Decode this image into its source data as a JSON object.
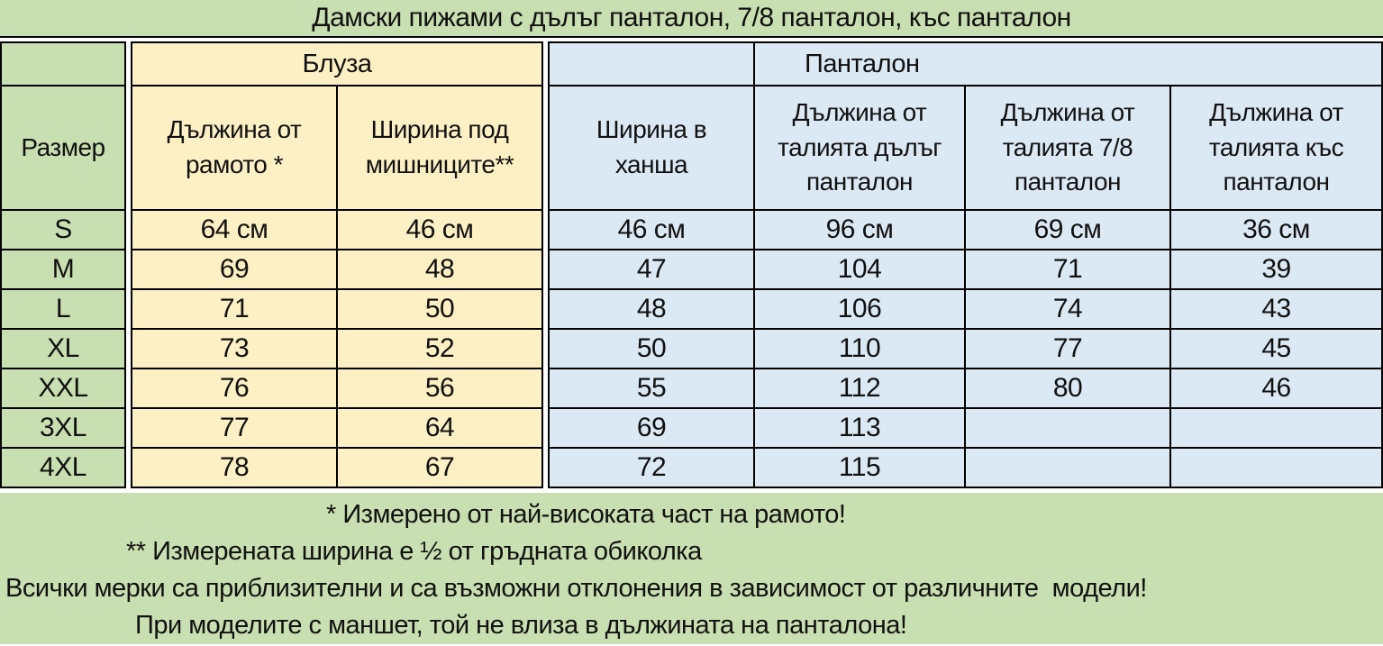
{
  "colors": {
    "section_green": "#c8dfb1",
    "section_yellow": "#fdf0c4",
    "section_blue": "#dbe9f4",
    "border": "#000000",
    "text": "#111111"
  },
  "chart_data": {
    "type": "table",
    "title": "Дамски пижами с дълъг панталон, 7/8 панталон, къс панталон",
    "row_header": "Размер",
    "column_groups": [
      {
        "label": "Блуза",
        "span": 2
      },
      {
        "label": "Панталон",
        "span": 4
      }
    ],
    "columns": [
      "Дължина от рамото *",
      "Ширина под мишниците**",
      "Ширина в ханша",
      "Дължина от талията дълъг панталон",
      "Дължина от талията  7/8 панталон",
      "Дължина от талията  къс панталон"
    ],
    "rows": [
      {
        "size": "S",
        "values": [
          "64 см",
          "46 см",
          "46 см",
          "96 см",
          "69 см",
          "36 см"
        ]
      },
      {
        "size": "M",
        "values": [
          "69",
          "48",
          "47",
          "104",
          "71",
          "39"
        ]
      },
      {
        "size": "L",
        "values": [
          "71",
          "50",
          "48",
          "106",
          "74",
          "43"
        ]
      },
      {
        "size": "XL",
        "values": [
          "73",
          "52",
          "50",
          "110",
          "77",
          "45"
        ]
      },
      {
        "size": "XXL",
        "values": [
          "76",
          "56",
          "55",
          "112",
          "80",
          "46"
        ]
      },
      {
        "size": "3XL",
        "values": [
          "77",
          "64",
          "69",
          "113",
          "",
          ""
        ]
      },
      {
        "size": "4XL",
        "values": [
          "78",
          "67",
          "72",
          "115",
          "",
          ""
        ]
      }
    ],
    "notes": [
      "* Измерено от най-високата част на рамото!",
      "** Измерената ширина е ½ от гръдната обиколка",
      "Всички мерки са приблизителни и са възможни отклонения в зависимост от различните  модели!",
      "При моделите с маншет, той не влиза в дължината на панталона!"
    ]
  }
}
